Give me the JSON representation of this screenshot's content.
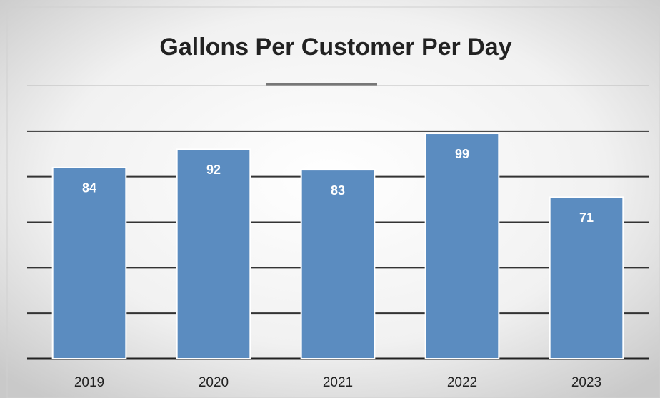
{
  "chart_data": {
    "type": "bar",
    "title": "Gallons Per Customer Per Day",
    "categories": [
      "2019",
      "2020",
      "2021",
      "2022",
      "2023"
    ],
    "values": [
      84,
      92,
      83,
      99,
      71
    ],
    "color": "#5b8cc0",
    "ylim": [
      0,
      120
    ],
    "yticks": [
      0,
      20,
      40,
      60,
      80,
      100,
      120
    ],
    "grid": true,
    "data_labels": true
  }
}
